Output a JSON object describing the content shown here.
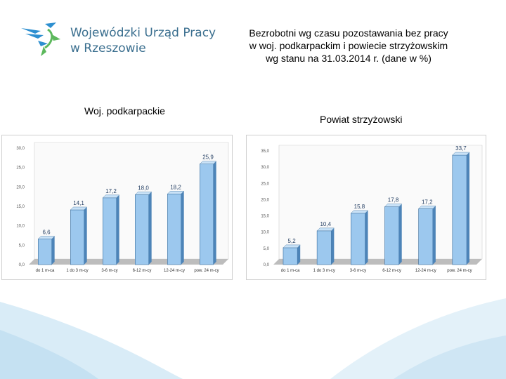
{
  "header": {
    "logo_line1": "Wojewódzki Urząd Pracy",
    "logo_line2": "w Rzeszowie",
    "title_lines": [
      "Bezrobotni wg czasu pozostawania bez pracy",
      "w woj. podkarpackim i powiecie strzyżowskim",
      "wg stanu na 31.03.2014 r. (dane w %)"
    ]
  },
  "colors": {
    "bar_front": "#9cc8ee",
    "bar_side": "#4d84b8",
    "bar_top": "#c9e2f7",
    "label": "#1f3a5f",
    "logo_text": "#3b6f8f",
    "logo_blue": "#2d8fd0",
    "logo_green": "#5cb85c"
  },
  "chart_data": [
    {
      "type": "bar",
      "subtitle": "Woj. podkarpackie",
      "categories": [
        "do 1 m-ca",
        "1 do 3 m-cy",
        "3-6 m-cy",
        "6-12 m-cy",
        "12-24 m-cy",
        "pow. 24 m-cy"
      ],
      "values": [
        6.6,
        14.1,
        17.2,
        18.0,
        18.2,
        25.9
      ],
      "value_labels": [
        "6,6",
        "14,1",
        "17,2",
        "18,0",
        "18,2",
        "25,9"
      ],
      "yticks": [
        "0,0",
        "5,0",
        "10,0",
        "15,0",
        "20,0",
        "25,0",
        "30,0"
      ],
      "ylim": [
        0,
        30
      ],
      "grid": false
    },
    {
      "type": "bar",
      "subtitle": "Powiat strzyżowski",
      "categories": [
        "do 1 m-ca",
        "1 do 3 m-cy",
        "3-6 m-cy",
        "6-12 m-cy",
        "12-24 m-cy",
        "pow. 24 m-cy"
      ],
      "values": [
        5.2,
        10.4,
        15.8,
        17.8,
        17.2,
        33.7
      ],
      "value_labels": [
        "5,2",
        "10,4",
        "15,8",
        "17,8",
        "17,2",
        "33,7"
      ],
      "yticks": [
        "0,0",
        "5,0",
        "10,0",
        "15,0",
        "20,0",
        "25,0",
        "30,0",
        "35,0"
      ],
      "ylim": [
        0,
        35
      ],
      "grid": false
    }
  ]
}
